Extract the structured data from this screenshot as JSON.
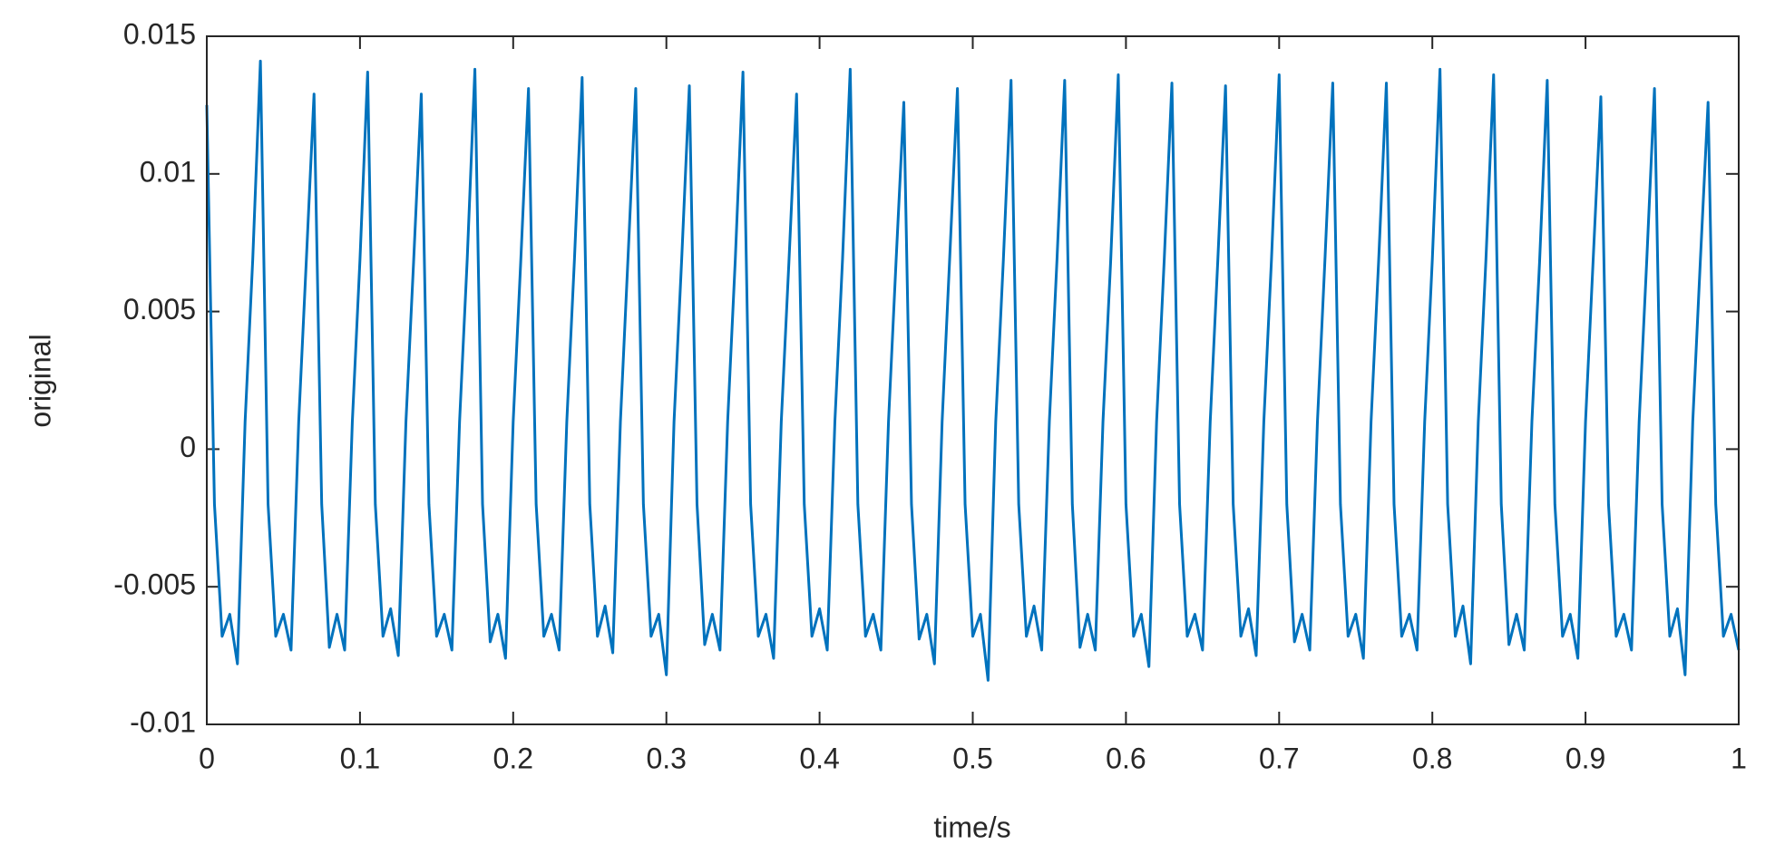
{
  "chart_data": {
    "type": "line",
    "xlabel": "time/s",
    "ylabel": "original",
    "xlim": [
      0,
      1
    ],
    "xticks": [
      0,
      0.1,
      0.2,
      0.3,
      0.4,
      0.5,
      0.6,
      0.7,
      0.8,
      0.9,
      1
    ],
    "ylim": [
      -0.01,
      0.015
    ],
    "yticks": [
      -0.01,
      -0.005,
      0,
      0.005,
      0.01,
      0.015
    ],
    "x": [
      0,
      0.005,
      0.01,
      0.015,
      0.02,
      0.025,
      0.03,
      0.035,
      0.04,
      0.045,
      0.05,
      0.055,
      0.06,
      0.065,
      0.07,
      0.075,
      0.08,
      0.085,
      0.09,
      0.095,
      0.1,
      0.105,
      0.11,
      0.115,
      0.12,
      0.125,
      0.13,
      0.135,
      0.14,
      0.145,
      0.15,
      0.155,
      0.16,
      0.165,
      0.17,
      0.175,
      0.18,
      0.185,
      0.19,
      0.195,
      0.2,
      0.205,
      0.21,
      0.215,
      0.22,
      0.225,
      0.23,
      0.235,
      0.24,
      0.245,
      0.25,
      0.255,
      0.26,
      0.265,
      0.27,
      0.275,
      0.28,
      0.285,
      0.29,
      0.295,
      0.3,
      0.305,
      0.31,
      0.315,
      0.32,
      0.325,
      0.33,
      0.335,
      0.34,
      0.345,
      0.35,
      0.355,
      0.36,
      0.365,
      0.37,
      0.375,
      0.38,
      0.385,
      0.39,
      0.395,
      0.4,
      0.405,
      0.41,
      0.415,
      0.42,
      0.425,
      0.43,
      0.435,
      0.44,
      0.445,
      0.45,
      0.455,
      0.46,
      0.465,
      0.47,
      0.475,
      0.48,
      0.485,
      0.49,
      0.495,
      0.5,
      0.505,
      0.51,
      0.515,
      0.52,
      0.525,
      0.53,
      0.535,
      0.54,
      0.545,
      0.55,
      0.555,
      0.56,
      0.565,
      0.57,
      0.575,
      0.58,
      0.585,
      0.59,
      0.595,
      0.6,
      0.605,
      0.61,
      0.615,
      0.62,
      0.625,
      0.63,
      0.635,
      0.64,
      0.645,
      0.65,
      0.655,
      0.66,
      0.665,
      0.67,
      0.675,
      0.68,
      0.685,
      0.69,
      0.695,
      0.7,
      0.705,
      0.71,
      0.715,
      0.72,
      0.725,
      0.73,
      0.735,
      0.74,
      0.745,
      0.75,
      0.755,
      0.76,
      0.765,
      0.77,
      0.775,
      0.78,
      0.785,
      0.79,
      0.795,
      0.8,
      0.805,
      0.81,
      0.815,
      0.82,
      0.825,
      0.83,
      0.835,
      0.84,
      0.845,
      0.85,
      0.855,
      0.86,
      0.865,
      0.87,
      0.875,
      0.88,
      0.885,
      0.89,
      0.895,
      0.9,
      0.905,
      0.91,
      0.915,
      0.92,
      0.925,
      0.93,
      0.935,
      0.94,
      0.945,
      0.95,
      0.955,
      0.96,
      0.965,
      0.97,
      0.975,
      0.98,
      0.985,
      0.99,
      0.995,
      1
    ],
    "series": [
      {
        "name": "original",
        "color": "#0072bd",
        "values": [
          0.0125,
          -0.002,
          -0.0068,
          -0.006,
          -0.0078,
          0.001,
          0.0069,
          0.0141,
          -0.002,
          -0.0068,
          -0.006,
          -0.0073,
          0.001,
          0.0069,
          0.0129,
          -0.002,
          -0.0072,
          -0.006,
          -0.0073,
          0.001,
          0.0069,
          0.0137,
          -0.002,
          -0.0068,
          -0.0058,
          -0.0075,
          0.001,
          0.0068,
          0.0129,
          -0.002,
          -0.0068,
          -0.006,
          -0.0073,
          0.001,
          0.0069,
          0.0138,
          -0.002,
          -0.007,
          -0.006,
          -0.0076,
          0.001,
          0.0069,
          0.0131,
          -0.002,
          -0.0068,
          -0.006,
          -0.0073,
          0.001,
          0.0069,
          0.0135,
          -0.002,
          -0.0068,
          -0.0057,
          -0.0074,
          0.001,
          0.007,
          0.0131,
          -0.002,
          -0.0068,
          -0.006,
          -0.0082,
          0.001,
          0.0069,
          0.0132,
          -0.002,
          -0.0071,
          -0.006,
          -0.0073,
          0.001,
          0.0069,
          0.0137,
          -0.002,
          -0.0068,
          -0.006,
          -0.0076,
          0.001,
          0.0068,
          0.0129,
          -0.002,
          -0.0068,
          -0.0058,
          -0.0073,
          0.001,
          0.0069,
          0.0138,
          -0.002,
          -0.0068,
          -0.006,
          -0.0073,
          0.001,
          0.0069,
          0.0126,
          -0.002,
          -0.0069,
          -0.006,
          -0.0078,
          0.001,
          0.007,
          0.0131,
          -0.002,
          -0.0068,
          -0.006,
          -0.0084,
          0.001,
          0.0069,
          0.0134,
          -0.002,
          -0.0068,
          -0.0057,
          -0.0073,
          0.001,
          0.0069,
          0.0134,
          -0.002,
          -0.0072,
          -0.006,
          -0.0073,
          0.001,
          0.0068,
          0.0136,
          -0.002,
          -0.0068,
          -0.006,
          -0.0079,
          0.001,
          0.0069,
          0.0133,
          -0.002,
          -0.0068,
          -0.006,
          -0.0073,
          0.001,
          0.0069,
          0.0132,
          -0.002,
          -0.0068,
          -0.0058,
          -0.0075,
          0.001,
          0.0069,
          0.0136,
          -0.002,
          -0.007,
          -0.006,
          -0.0073,
          0.001,
          0.007,
          0.0133,
          -0.002,
          -0.0068,
          -0.006,
          -0.0076,
          0.001,
          0.0069,
          0.0133,
          -0.002,
          -0.0068,
          -0.006,
          -0.0073,
          0.001,
          0.0069,
          0.0138,
          -0.002,
          -0.0068,
          -0.0057,
          -0.0078,
          0.001,
          0.0069,
          0.0136,
          -0.002,
          -0.0071,
          -0.006,
          -0.0073,
          0.001,
          0.0068,
          0.0134,
          -0.002,
          -0.0068,
          -0.006,
          -0.0076,
          0.001,
          0.0069,
          0.0128,
          -0.002,
          -0.0068,
          -0.006,
          -0.0073,
          0.001,
          0.0069,
          0.0131,
          -0.002,
          -0.0068,
          -0.0058,
          -0.0082,
          0.001,
          0.0069,
          0.0126,
          -0.002,
          -0.0068,
          -0.006,
          -0.0073
        ]
      }
    ]
  }
}
